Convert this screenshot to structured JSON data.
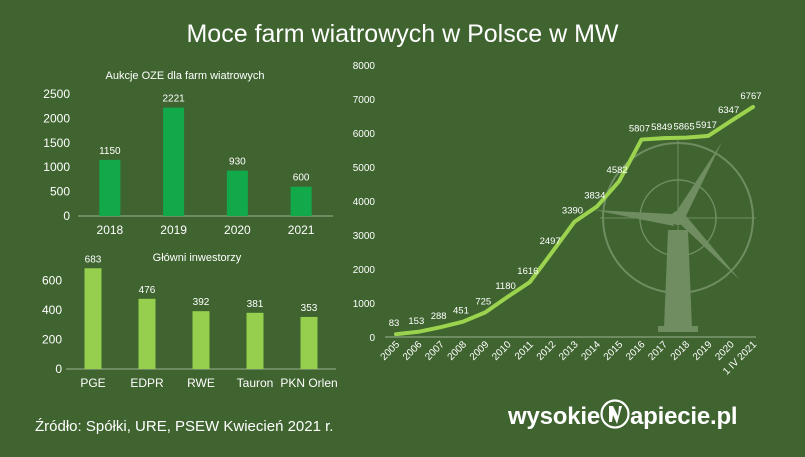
{
  "title": "Moce farm wiatrowych w Polsce w MW",
  "footer": {
    "source": "Źródło:  Spółki, URE, PSEW Kwiecień 2021 r."
  },
  "logo": {
    "text_lead": "wysokie",
    "text_trail": "apiecie.pl"
  },
  "colors": {
    "background": "#3f6430",
    "bar_dark_green": "#12a94b",
    "bar_light_green": "#95cf4d",
    "line": "#9bd34f",
    "text": "#ffffff"
  },
  "chart_data": [
    {
      "type": "bar",
      "title": "Aukcje OZE dla farm wiatrowych",
      "categories": [
        "2018",
        "2019",
        "2020",
        "2021"
      ],
      "values": [
        1150,
        2221,
        930,
        600
      ],
      "ylim": [
        0,
        2500
      ],
      "yticks": [
        0,
        500,
        1000,
        1500,
        2000,
        2500
      ],
      "grid": false,
      "color": "#12a94b"
    },
    {
      "type": "bar",
      "title": "Główni inwestorzy",
      "categories": [
        "PGE",
        "EDPR",
        "RWE",
        "Tauron",
        "PKN Orlen"
      ],
      "values": [
        683,
        476,
        392,
        381,
        353
      ],
      "ylim": [
        0,
        800
      ],
      "yticks": [
        0,
        200,
        400,
        600
      ],
      "grid": false,
      "color": "#95cf4d"
    },
    {
      "type": "line",
      "title": "",
      "categories": [
        "2005",
        "2006",
        "2007",
        "2008",
        "2009",
        "2010",
        "2011",
        "2012",
        "2013",
        "2014",
        "2015",
        "2016",
        "2017",
        "2018",
        "2019",
        "2020",
        "1 IV 2021"
      ],
      "values": [
        83,
        153,
        288,
        451,
        725,
        1180,
        1616,
        2497,
        3390,
        3834,
        4582,
        5807,
        5849,
        5865,
        5917,
        6347,
        6767
      ],
      "ylim": [
        0,
        8000
      ],
      "yticks": [
        0,
        1000,
        2000,
        3000,
        4000,
        5000,
        6000,
        7000,
        8000
      ],
      "grid": false,
      "color": "#9bd34f"
    }
  ]
}
